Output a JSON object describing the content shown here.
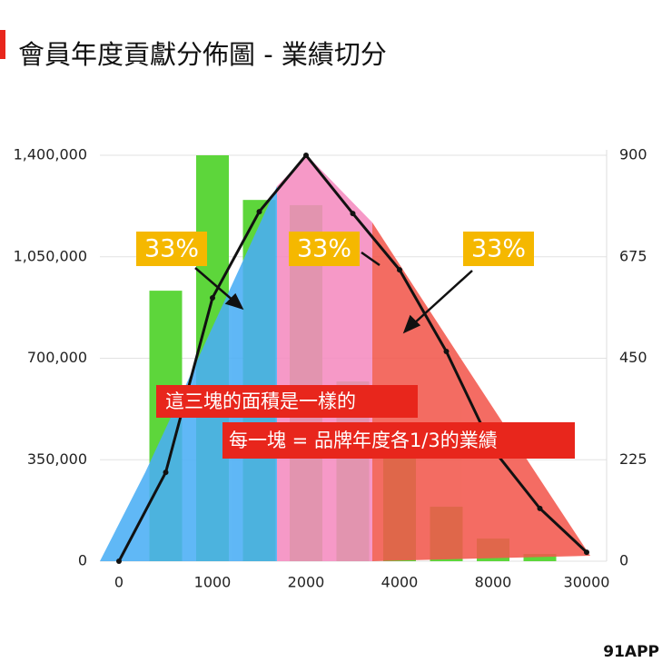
{
  "logo": "91APP",
  "chart_data": {
    "type": "combo",
    "title": "會員年度貢獻分佈圖 - 業績切分",
    "categories": [
      "0",
      null,
      "1000",
      null,
      "2000",
      null,
      "4000",
      null,
      "8000",
      null,
      "30000"
    ],
    "series": [
      {
        "type": "bar",
        "color": "#5dd63b",
        "values": [
          null,
          933000,
          1400000,
          1246000,
          1228000,
          620000,
          370000,
          188000,
          78000,
          25000,
          null
        ]
      },
      {
        "type": "line",
        "axis": "y2",
        "color": "#111111",
        "values": [
          0,
          197,
          584,
          775,
          900,
          771,
          646,
          465,
          248,
          117,
          20
        ]
      }
    ],
    "ylim": [
      0,
      1400000
    ],
    "yticks": [
      {
        "value": 0,
        "label": "0"
      },
      {
        "value": 350000,
        "label": "350,000"
      },
      {
        "value": 700000,
        "label": "700,000"
      },
      {
        "value": 1050000,
        "label": "1,050,000"
      },
      {
        "value": 1400000,
        "label": "1,400,000"
      }
    ],
    "y2lim": [
      0,
      900
    ],
    "y2ticks": [
      0,
      225,
      450,
      675,
      900
    ],
    "grid": true,
    "annotations": [
      "33%",
      "33%",
      "33%",
      "這三塊的面積是一樣的",
      "每一塊 = 品牌年度各1/3的業績"
    ]
  }
}
